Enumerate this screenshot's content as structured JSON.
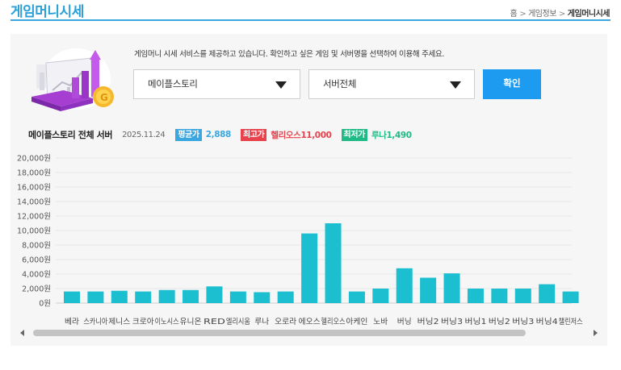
{
  "header": {
    "title": "게임머니시세",
    "breadcrumb": [
      "홈",
      "게임정보",
      "게임머니시세"
    ],
    "breadcrumb_sep": ">"
  },
  "search": {
    "description": "게임머니 시세 서비스를 제공하고 있습니다. 확인하고 싶은 게임 및 서버명을 선택하여 이용해 주세요.",
    "game_value": "메이플스토리",
    "server_value": "서버전체",
    "confirm_label": "확인"
  },
  "summary": {
    "server_title": "메이플스토리 전체 서버",
    "date": "2025.11.24",
    "avg_label": "평균가",
    "avg_value": "2,888",
    "max_label": "최고가",
    "max_value": "헬리오스11,000",
    "min_label": "최저가",
    "min_value": "루나1,490"
  },
  "colors": {
    "accent": "#2a9fd8",
    "avg": "#3aa7de",
    "max": "#e8424c",
    "min": "#1fba86",
    "bar": "#1bbfcf",
    "button": "#1d9bf0"
  },
  "chart_data": {
    "type": "bar",
    "categories": [
      "베라",
      "스카니아",
      "제니스",
      "크로아",
      "이노시스",
      "유니온",
      "RED",
      "엘리시움",
      "루나",
      "오로라",
      "에오스",
      "헬리오스",
      "아케인",
      "노바",
      "버닝",
      "버닝2",
      "버닝3",
      "버닝1",
      "버닝2",
      "버닝3",
      "버닝4",
      "챌린저스"
    ],
    "values": [
      1600,
      1600,
      1700,
      1600,
      1800,
      1800,
      2300,
      1600,
      1500,
      1600,
      9600,
      11000,
      1600,
      2000,
      4800,
      3500,
      4100,
      2000,
      2000,
      2000,
      2600,
      1600
    ],
    "ylim": [
      0,
      20000
    ],
    "yticks": [
      "0원",
      "2,000원",
      "4,000원",
      "6,000원",
      "8,000원",
      "10,000원",
      "12,000원",
      "14,000원",
      "16,000원",
      "18,000원",
      "20,000원"
    ],
    "grid": true,
    "legend": "none"
  }
}
